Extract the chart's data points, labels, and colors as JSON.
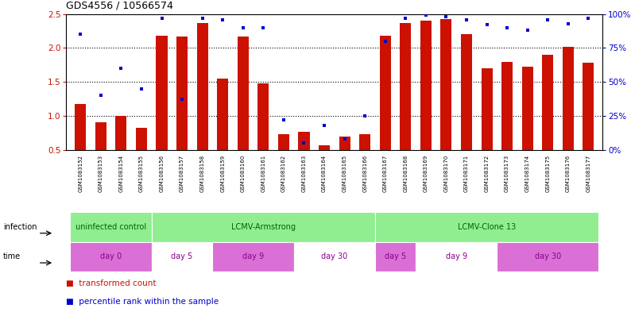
{
  "title": "GDS4556 / 10566574",
  "samples": [
    "GSM1083152",
    "GSM1083153",
    "GSM1083154",
    "GSM1083155",
    "GSM1083156",
    "GSM1083157",
    "GSM1083158",
    "GSM1083159",
    "GSM1083160",
    "GSM1083161",
    "GSM1083162",
    "GSM1083163",
    "GSM1083164",
    "GSM1083165",
    "GSM1083166",
    "GSM1083167",
    "GSM1083168",
    "GSM1083169",
    "GSM1083170",
    "GSM1083171",
    "GSM1083172",
    "GSM1083173",
    "GSM1083174",
    "GSM1083175",
    "GSM1083176",
    "GSM1083177"
  ],
  "bar_values": [
    1.18,
    0.9,
    1.0,
    0.82,
    2.18,
    2.17,
    2.37,
    1.55,
    2.17,
    1.48,
    0.73,
    0.77,
    0.57,
    0.7,
    0.73,
    2.18,
    2.37,
    2.4,
    2.43,
    2.2,
    1.7,
    1.8,
    1.72,
    1.9,
    2.02,
    1.78
  ],
  "percentile_values": [
    85,
    40,
    60,
    45,
    97,
    37,
    97,
    96,
    90,
    90,
    22,
    5,
    18,
    8,
    25,
    80,
    97,
    99,
    98,
    96,
    92,
    90,
    88,
    96,
    93,
    97
  ],
  "ylim_left": [
    0.5,
    2.5
  ],
  "ylim_right": [
    0,
    100
  ],
  "yticks_left": [
    0.5,
    1.0,
    1.5,
    2.0,
    2.5
  ],
  "yticks_right": [
    0,
    25,
    50,
    75,
    100
  ],
  "ytick_labels_right": [
    "0%",
    "25%",
    "50%",
    "75%",
    "100%"
  ],
  "bar_color": "#cc1100",
  "dot_color": "#0000cc",
  "bar_bottom": 0.5,
  "infection_groups": [
    {
      "label": "uninfected control",
      "start": 0,
      "end": 4,
      "color": "#90ee90"
    },
    {
      "label": "LCMV-Armstrong",
      "start": 4,
      "end": 15,
      "color": "#90ee90"
    },
    {
      "label": "LCMV-Clone 13",
      "start": 15,
      "end": 26,
      "color": "#90ee90"
    }
  ],
  "time_groups": [
    {
      "label": "day 0",
      "start": 0,
      "end": 4,
      "color": "#da70d6"
    },
    {
      "label": "day 5",
      "start": 4,
      "end": 7,
      "color": "#ffffff"
    },
    {
      "label": "day 9",
      "start": 7,
      "end": 11,
      "color": "#da70d6"
    },
    {
      "label": "day 30",
      "start": 11,
      "end": 15,
      "color": "#ffffff"
    },
    {
      "label": "day 5",
      "start": 15,
      "end": 17,
      "color": "#da70d6"
    },
    {
      "label": "day 9",
      "start": 17,
      "end": 21,
      "color": "#ffffff"
    },
    {
      "label": "day 30",
      "start": 21,
      "end": 26,
      "color": "#da70d6"
    }
  ],
  "legend_bar_label": "transformed count",
  "legend_dot_label": "percentile rank within the sample",
  "bar_color_hex": "#cc1100",
  "dot_color_hex": "#0000cc",
  "infection_text_color": "#006400",
  "time_text_color": "#8b008b",
  "sample_bg_color": "#d3d3d3",
  "infection_bg_color": "#90ee90",
  "grid_line_color": "black",
  "title_fontsize": 9,
  "axis_fontsize": 7.5,
  "sample_fontsize": 5.0,
  "row_fontsize": 7.0,
  "legend_fontsize": 7.5
}
